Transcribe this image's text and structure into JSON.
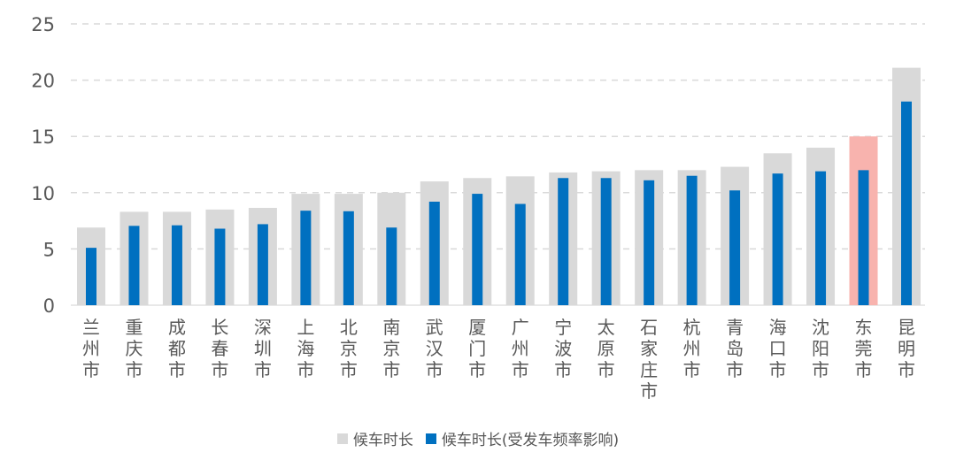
{
  "chart_data": {
    "type": "bar",
    "categories": [
      "兰州市",
      "重庆市",
      "成都市",
      "长春市",
      "深圳市",
      "上海市",
      "北京市",
      "南京市",
      "武汉市",
      "厦门市",
      "广州市",
      "宁波市",
      "太原市",
      "石家庄市",
      "杭州市",
      "青岛市",
      "海口市",
      "沈阳市",
      "东莞市",
      "昆明市"
    ],
    "series": [
      {
        "name": "候车时长",
        "color": "#d9d9d9",
        "values": [
          6.9,
          8.3,
          8.3,
          8.5,
          8.65,
          9.9,
          9.9,
          10.0,
          11.0,
          11.3,
          11.45,
          11.8,
          11.9,
          12.0,
          12.0,
          12.3,
          13.5,
          14.0,
          15.0,
          21.1
        ]
      },
      {
        "name": "候车时长(受发车频率影响)",
        "color": "#0070c0",
        "values": [
          5.1,
          7.05,
          7.1,
          6.8,
          7.2,
          8.4,
          8.35,
          6.9,
          9.2,
          9.9,
          9.0,
          11.3,
          11.3,
          11.1,
          11.5,
          10.2,
          11.7,
          11.9,
          12.0,
          18.1
        ]
      }
    ],
    "highlight": {
      "category": "东莞市",
      "color": "#f8b3ae"
    },
    "yticks": [
      0,
      5,
      10,
      15,
      20,
      25
    ],
    "ylim": [
      0,
      25
    ],
    "grid": true,
    "legend": "bottom",
    "title": "",
    "xlabel": "",
    "ylabel": ""
  }
}
